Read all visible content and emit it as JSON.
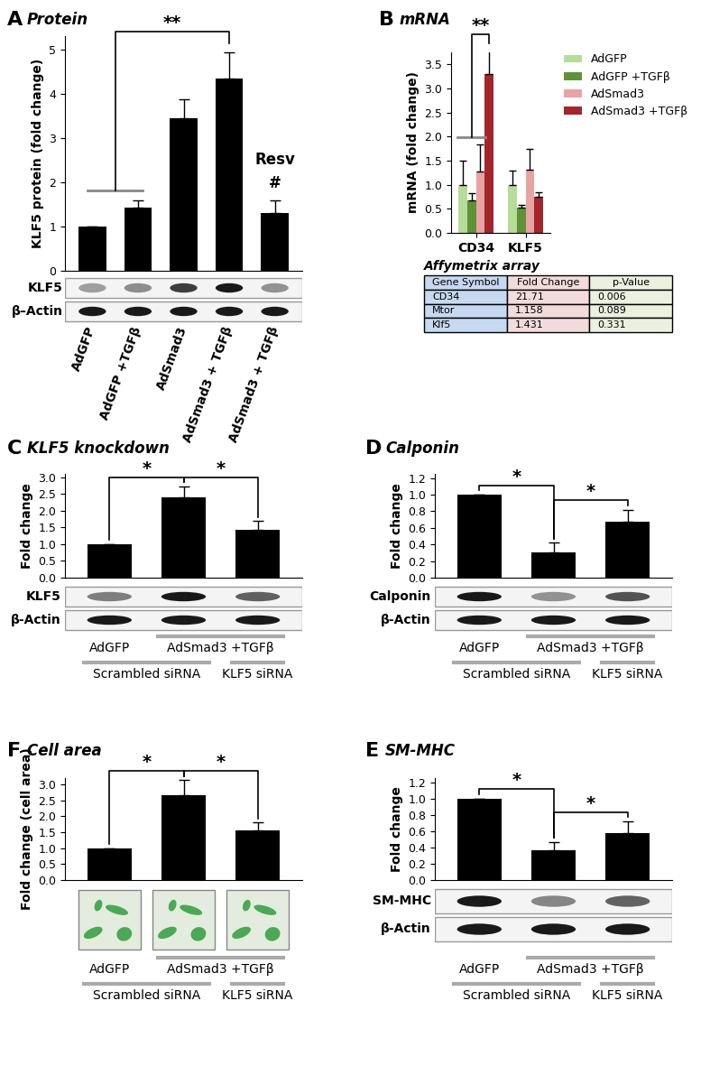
{
  "chart_data": [
    {
      "panel": "A",
      "title": "Protein",
      "type": "bar",
      "y_label": "KLF5 protein (fold change)",
      "categories": [
        "AdGFP",
        "AdGFP +TGFβ",
        "AdSmad3",
        "AdSmad3 + TGFβ",
        "AdSmad3 + TGFβ"
      ],
      "values": [
        1.0,
        1.42,
        3.45,
        4.35,
        1.3
      ],
      "errors": [
        0,
        0.18,
        0.42,
        0.58,
        0.28
      ],
      "color": "#000000",
      "ylim": [
        0,
        5.3
      ],
      "yticks": [
        0,
        1,
        2,
        3,
        4,
        5
      ],
      "brackets": [
        {
          "left": [
            0,
            1
          ],
          "right": [
            3
          ],
          "text": "**"
        }
      ],
      "annotations": [
        {
          "bar": 4,
          "text": "#"
        },
        {
          "bar": 4,
          "text": "Resv"
        }
      ],
      "blots": [
        "KLF5",
        "β–Actin"
      ]
    },
    {
      "panel": "B",
      "title": "mRNA",
      "type": "grouped_bar",
      "y_label": "mRNA (fold change)",
      "categories": [
        "CD34",
        "KLF5"
      ],
      "series": [
        {
          "name": "AdGFP",
          "color": "#b5dc98",
          "values": [
            1.0,
            1.0
          ],
          "errors": [
            0.5,
            0.3
          ]
        },
        {
          "name": "AdGFP +TGFβ",
          "color": "#5f9137",
          "values": [
            0.68,
            0.52
          ],
          "errors": [
            0.15,
            0.07
          ]
        },
        {
          "name": "AdSmad3",
          "color": "#e8a3a3",
          "values": [
            1.27,
            1.32
          ],
          "errors": [
            0.57,
            0.43
          ]
        },
        {
          "name": "AdSmad3 +TGFβ",
          "color": "#a3262b",
          "values": [
            3.3,
            0.75
          ],
          "errors": [
            0.48,
            0.1
          ]
        }
      ],
      "ylim": [
        0,
        3.75
      ],
      "yticks": [
        {
          "value": 0,
          "label": "0.0"
        },
        {
          "value": 0.5,
          "label": "0.5"
        },
        {
          "value": 1,
          "label": "1.0"
        },
        {
          "value": 1.5,
          "label": "1.5"
        },
        {
          "value": 2,
          "label": "2.0"
        },
        {
          "value": 2.5,
          "label": "2.5"
        },
        {
          "value": 3,
          "label": "3.0"
        },
        {
          "value": 3.5,
          "label": "3.5"
        }
      ],
      "legend": "upper left",
      "brackets": [
        {
          "category": 0,
          "left": [
            0,
            1,
            2
          ],
          "right": [
            3
          ],
          "text": "**"
        }
      ],
      "table": {
        "title": "Affymetrix array",
        "header": [
          "Gene Symbol",
          "Fold Change",
          "p-Value"
        ],
        "rows": [
          [
            "CD34",
            21.71,
            0.006
          ],
          [
            "Mtor",
            1.158,
            0.089
          ],
          [
            "Klf5",
            1.431,
            0.331
          ]
        ]
      }
    },
    {
      "panel": "C",
      "title": "KLF5 knockdown",
      "type": "bar",
      "y_label": "Fold change",
      "values": [
        1.0,
        2.4,
        1.42
      ],
      "errors": [
        0,
        0.32,
        0.27
      ],
      "color": "#000000",
      "ylim": [
        0,
        3.1
      ],
      "yticks": [
        {
          "value": 0,
          "label": "0.0"
        },
        {
          "value": 0.5,
          "label": "0.5"
        },
        {
          "value": 1,
          "label": "1.0"
        },
        {
          "value": 1.5,
          "label": "1.5"
        },
        {
          "value": 2,
          "label": "2.0"
        },
        {
          "value": 2.5,
          "label": "2.5"
        },
        {
          "value": 3,
          "label": "3.0"
        }
      ],
      "brackets": [
        {
          "left": [
            0
          ],
          "right": [
            1
          ],
          "text": "*"
        },
        {
          "left": [
            1
          ],
          "right": [
            2
          ],
          "text": "*"
        }
      ],
      "blots": [
        "KLF5",
        "β-Actin"
      ],
      "label_rows": [
        [
          {
            "text": "AdGFP",
            "from": 0,
            "to": 0
          },
          {
            "text": "AdSmad3 +TGFβ",
            "from": 1,
            "to": 2
          }
        ],
        [
          {
            "text": "Scrambled siRNA",
            "from": 0,
            "to": 1
          },
          {
            "text": "KLF5 siRNA",
            "from": 2,
            "to": 2
          }
        ]
      ]
    },
    {
      "panel": "D",
      "title": "Calponin",
      "type": "bar",
      "y_label": "Fold change",
      "values": [
        1.0,
        0.3,
        0.67
      ],
      "errors": [
        0,
        0.12,
        0.15
      ],
      "color": "#000000",
      "ylim": [
        0,
        1.25
      ],
      "yticks": [
        {
          "value": 0,
          "label": "0.0"
        },
        {
          "value": 0.2,
          "label": "0.2"
        },
        {
          "value": 0.4,
          "label": "0.4"
        },
        {
          "value": 0.6,
          "label": "0.6"
        },
        {
          "value": 0.8,
          "label": "0.8"
        },
        {
          "value": 1,
          "label": "1.0"
        },
        {
          "value": 1.2,
          "label": "1.2"
        }
      ],
      "brackets": [
        {
          "left": [
            0
          ],
          "right": [
            1
          ],
          "text": "*"
        },
        {
          "left": [
            1
          ],
          "right": [
            2
          ],
          "text": "*"
        }
      ],
      "blots": [
        "Calponin",
        "β-Actin"
      ],
      "label_rows": [
        [
          {
            "text": "AdGFP",
            "from": 0,
            "to": 0
          },
          {
            "text": "AdSmad3 +TGFβ",
            "from": 1,
            "to": 2
          }
        ],
        [
          {
            "text": "Scrambled siRNA",
            "from": 0,
            "to": 1
          },
          {
            "text": "KLF5 siRNA",
            "from": 2,
            "to": 2
          }
        ]
      ]
    },
    {
      "panel": "F",
      "title": "Cell area",
      "type": "bar",
      "y_label": "Fold change (cell area)",
      "values": [
        1.0,
        2.65,
        1.55
      ],
      "errors": [
        0,
        0.48,
        0.25
      ],
      "color": "#000000",
      "ylim": [
        0,
        3.2
      ],
      "yticks": [
        {
          "value": 0,
          "label": "0.0"
        },
        {
          "value": 0.5,
          "label": "0.5"
        },
        {
          "value": 1,
          "label": "1.0"
        },
        {
          "value": 1.5,
          "label": "1.5"
        },
        {
          "value": 2,
          "label": "2.0"
        },
        {
          "value": 2.5,
          "label": "2.5"
        },
        {
          "value": 3,
          "label": "3.0"
        }
      ],
      "brackets": [
        {
          "left": [
            0
          ],
          "right": [
            1
          ],
          "text": "*"
        },
        {
          "left": [
            1
          ],
          "right": [
            2
          ],
          "text": "*"
        }
      ],
      "label_rows": [
        [
          {
            "text": "AdGFP",
            "from": 0,
            "to": 0
          },
          {
            "text": "AdSmad3 +TGFβ",
            "from": 1,
            "to": 2
          }
        ],
        [
          {
            "text": "Scrambled siRNA",
            "from": 0,
            "to": 1
          },
          {
            "text": "KLF5 siRNA",
            "from": 2,
            "to": 2
          }
        ]
      ]
    },
    {
      "panel": "E",
      "title": "SM-MHC",
      "type": "bar",
      "y_label": "Fold change",
      "values": [
        1.0,
        0.37,
        0.58
      ],
      "errors": [
        0,
        0.1,
        0.14
      ],
      "color": "#000000",
      "ylim": [
        0,
        1.25
      ],
      "yticks": [
        {
          "value": 0,
          "label": "0.0"
        },
        {
          "value": 0.2,
          "label": "0.2"
        },
        {
          "value": 0.4,
          "label": "0.4"
        },
        {
          "value": 0.6,
          "label": "0.6"
        },
        {
          "value": 0.8,
          "label": "0.8"
        },
        {
          "value": 1,
          "label": "1.0"
        },
        {
          "value": 1.2,
          "label": "1.2"
        }
      ],
      "brackets": [
        {
          "left": [
            0
          ],
          "right": [
            1
          ],
          "text": "*"
        },
        {
          "left": [
            1
          ],
          "right": [
            2
          ],
          "text": "*"
        }
      ],
      "blots": [
        "SM-MHC",
        "β-Actin"
      ],
      "label_rows": [
        [
          {
            "text": "AdGFP",
            "from": 0,
            "to": 0
          },
          {
            "text": "AdSmad3 +TGFβ",
            "from": 1,
            "to": 2
          }
        ],
        [
          {
            "text": "Scrambled siRNA",
            "from": 0,
            "to": 1
          },
          {
            "text": "KLF5 siRNA",
            "from": 2,
            "to": 2
          }
        ]
      ]
    }
  ]
}
